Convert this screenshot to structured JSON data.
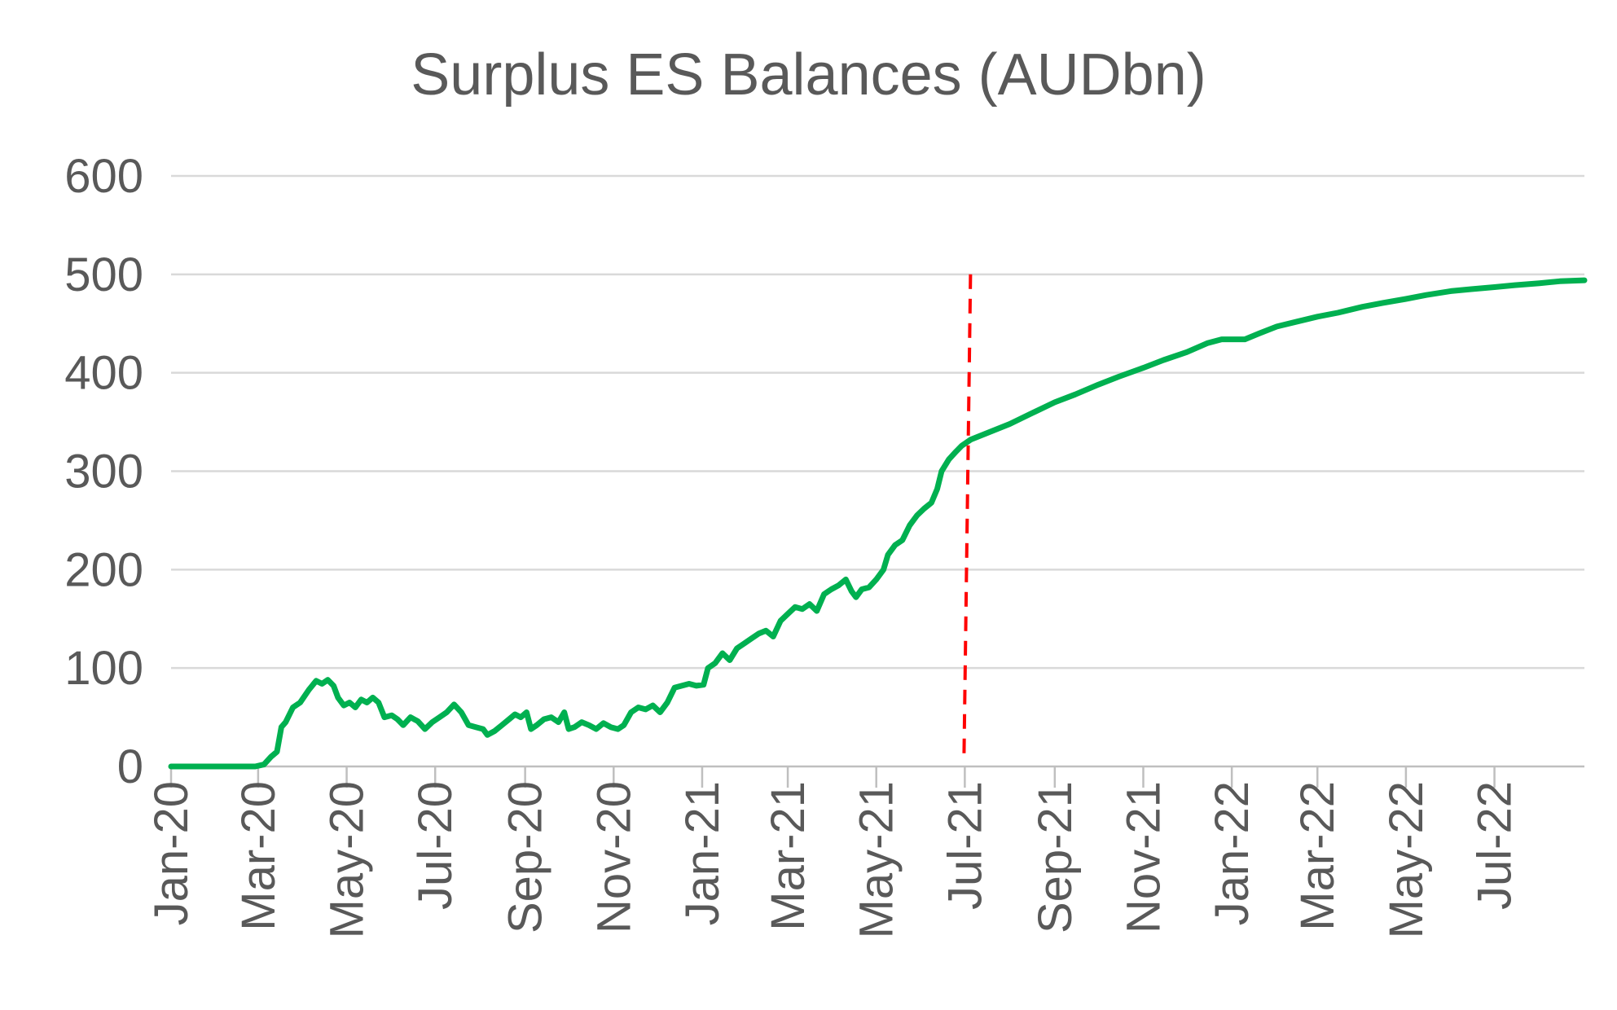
{
  "chart_data": {
    "type": "line",
    "title": "Surplus ES Balances (AUDbn)",
    "xlabel": "",
    "ylabel": "",
    "ylim": [
      0,
      600
    ],
    "yticks": [
      0,
      100,
      200,
      300,
      400,
      500,
      600
    ],
    "xlim": [
      "2020-01-01",
      "2022-09-01"
    ],
    "xtick_labels": [
      "Jan-20",
      "Mar-20",
      "May-20",
      "Jul-20",
      "Sep-20",
      "Nov-20",
      "Jan-21",
      "Mar-21",
      "May-21",
      "Jul-21",
      "Sep-21",
      "Nov-21",
      "Jan-22",
      "Mar-22",
      "May-22",
      "Jul-22"
    ],
    "xtick_dates": [
      "2020-01-01",
      "2020-03-01",
      "2020-05-01",
      "2020-07-01",
      "2020-09-01",
      "2020-11-01",
      "2021-01-01",
      "2021-03-01",
      "2021-05-01",
      "2021-07-01",
      "2021-09-01",
      "2021-11-01",
      "2022-01-01",
      "2022-03-01",
      "2022-05-01",
      "2022-07-01"
    ],
    "grid": true,
    "line_color": "#00b050",
    "marker_line": {
      "date": "2021-07-01",
      "color": "#ff0000",
      "style": "dashed",
      "ymin": 0,
      "ymax": 500
    },
    "series": [
      {
        "name": "",
        "points": [
          [
            "2020-01-01",
            0
          ],
          [
            "2020-02-28",
            0
          ],
          [
            "2020-03-05",
            2
          ],
          [
            "2020-03-10",
            10
          ],
          [
            "2020-03-14",
            15
          ],
          [
            "2020-03-17",
            40
          ],
          [
            "2020-03-20",
            45
          ],
          [
            "2020-03-25",
            60
          ],
          [
            "2020-03-30",
            65
          ],
          [
            "2020-04-05",
            78
          ],
          [
            "2020-04-10",
            87
          ],
          [
            "2020-04-14",
            84
          ],
          [
            "2020-04-18",
            88
          ],
          [
            "2020-04-22",
            82
          ],
          [
            "2020-04-25",
            70
          ],
          [
            "2020-04-29",
            62
          ],
          [
            "2020-05-03",
            65
          ],
          [
            "2020-05-07",
            60
          ],
          [
            "2020-05-11",
            68
          ],
          [
            "2020-05-15",
            65
          ],
          [
            "2020-05-19",
            70
          ],
          [
            "2020-05-23",
            65
          ],
          [
            "2020-05-27",
            50
          ],
          [
            "2020-06-01",
            52
          ],
          [
            "2020-06-05",
            48
          ],
          [
            "2020-06-09",
            42
          ],
          [
            "2020-06-14",
            50
          ],
          [
            "2020-06-19",
            46
          ],
          [
            "2020-06-24",
            38
          ],
          [
            "2020-06-29",
            45
          ],
          [
            "2020-07-04",
            50
          ],
          [
            "2020-07-09",
            55
          ],
          [
            "2020-07-14",
            63
          ],
          [
            "2020-07-19",
            55
          ],
          [
            "2020-07-24",
            42
          ],
          [
            "2020-07-29",
            40
          ],
          [
            "2020-08-03",
            38
          ],
          [
            "2020-08-06",
            32
          ],
          [
            "2020-08-11",
            36
          ],
          [
            "2020-08-16",
            42
          ],
          [
            "2020-08-21",
            48
          ],
          [
            "2020-08-25",
            53
          ],
          [
            "2020-08-29",
            50
          ],
          [
            "2020-09-02",
            55
          ],
          [
            "2020-09-05",
            38
          ],
          [
            "2020-09-09",
            42
          ],
          [
            "2020-09-14",
            48
          ],
          [
            "2020-09-19",
            50
          ],
          [
            "2020-09-24",
            45
          ],
          [
            "2020-09-28",
            55
          ],
          [
            "2020-10-01",
            38
          ],
          [
            "2020-10-05",
            40
          ],
          [
            "2020-10-10",
            45
          ],
          [
            "2020-10-15",
            42
          ],
          [
            "2020-10-20",
            38
          ],
          [
            "2020-10-25",
            44
          ],
          [
            "2020-10-30",
            40
          ],
          [
            "2020-11-04",
            38
          ],
          [
            "2020-11-08",
            42
          ],
          [
            "2020-11-13",
            55
          ],
          [
            "2020-11-18",
            60
          ],
          [
            "2020-11-23",
            58
          ],
          [
            "2020-11-28",
            62
          ],
          [
            "2020-12-03",
            55
          ],
          [
            "2020-12-08",
            65
          ],
          [
            "2020-12-13",
            80
          ],
          [
            "2020-12-18",
            82
          ],
          [
            "2020-12-23",
            84
          ],
          [
            "2020-12-28",
            82
          ],
          [
            "2021-01-02",
            83
          ],
          [
            "2021-01-05",
            100
          ],
          [
            "2021-01-10",
            105
          ],
          [
            "2021-01-15",
            115
          ],
          [
            "2021-01-20",
            108
          ],
          [
            "2021-01-25",
            120
          ],
          [
            "2021-01-30",
            125
          ],
          [
            "2021-02-04",
            130
          ],
          [
            "2021-02-09",
            135
          ],
          [
            "2021-02-14",
            138
          ],
          [
            "2021-02-19",
            132
          ],
          [
            "2021-02-24",
            148
          ],
          [
            "2021-03-01",
            155
          ],
          [
            "2021-03-06",
            162
          ],
          [
            "2021-03-11",
            160
          ],
          [
            "2021-03-16",
            165
          ],
          [
            "2021-03-21",
            158
          ],
          [
            "2021-03-26",
            175
          ],
          [
            "2021-03-31",
            180
          ],
          [
            "2021-04-05",
            184
          ],
          [
            "2021-04-10",
            190
          ],
          [
            "2021-04-14",
            178
          ],
          [
            "2021-04-17",
            172
          ],
          [
            "2021-04-21",
            180
          ],
          [
            "2021-04-26",
            182
          ],
          [
            "2021-05-01",
            190
          ],
          [
            "2021-05-06",
            200
          ],
          [
            "2021-05-09",
            215
          ],
          [
            "2021-05-14",
            225
          ],
          [
            "2021-05-19",
            230
          ],
          [
            "2021-05-24",
            245
          ],
          [
            "2021-05-29",
            255
          ],
          [
            "2021-06-03",
            262
          ],
          [
            "2021-06-08",
            268
          ],
          [
            "2021-06-12",
            282
          ],
          [
            "2021-06-15",
            300
          ],
          [
            "2021-06-20",
            312
          ],
          [
            "2021-06-25",
            320
          ],
          [
            "2021-06-29",
            326
          ],
          [
            "2021-07-05",
            332
          ],
          [
            "2021-07-15",
            338
          ],
          [
            "2021-08-01",
            348
          ],
          [
            "2021-08-15",
            358
          ],
          [
            "2021-09-01",
            370
          ],
          [
            "2021-09-15",
            378
          ],
          [
            "2021-10-01",
            388
          ],
          [
            "2021-10-15",
            396
          ],
          [
            "2021-11-01",
            405
          ],
          [
            "2021-11-15",
            413
          ],
          [
            "2021-12-01",
            421
          ],
          [
            "2021-12-15",
            430
          ],
          [
            "2021-12-25",
            434
          ],
          [
            "2022-01-10",
            434
          ],
          [
            "2022-01-20",
            440
          ],
          [
            "2022-02-01",
            447
          ],
          [
            "2022-02-15",
            452
          ],
          [
            "2022-03-01",
            457
          ],
          [
            "2022-03-15",
            461
          ],
          [
            "2022-04-01",
            467
          ],
          [
            "2022-04-15",
            471
          ],
          [
            "2022-05-01",
            475
          ],
          [
            "2022-05-15",
            479
          ],
          [
            "2022-06-01",
            483
          ],
          [
            "2022-06-15",
            485
          ],
          [
            "2022-07-01",
            487
          ],
          [
            "2022-07-15",
            489
          ],
          [
            "2022-08-01",
            491
          ],
          [
            "2022-08-15",
            493
          ],
          [
            "2022-09-01",
            494
          ]
        ]
      }
    ]
  }
}
